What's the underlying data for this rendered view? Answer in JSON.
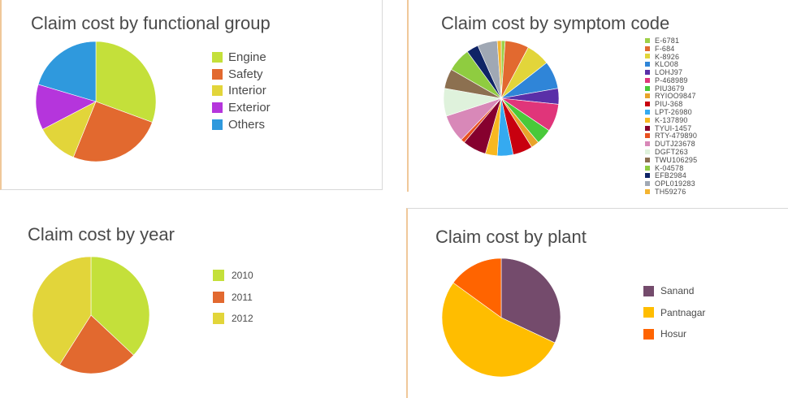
{
  "chart_data": [
    {
      "type": "pie",
      "title": "Claim cost by functional group",
      "categories": [
        "Engine",
        "Safety",
        "Interior",
        "Exterior",
        "Others"
      ],
      "values": [
        30,
        25,
        11,
        12,
        20
      ],
      "colors": [
        "#c4e03a",
        "#e2692f",
        "#e2d53a",
        "#b535dc",
        "#2f99dd"
      ],
      "legend": "right"
    },
    {
      "type": "pie",
      "title": "Claim cost by symptom code",
      "categories": [
        "E-6781",
        "F-684",
        "K-8926",
        "KLO08",
        "LOHJ97",
        "P-468989",
        "PIU3679",
        "RYIOO9847",
        "PIU-368",
        "LPT-26980",
        "K-137890",
        "TYUI-1457",
        "RTY-479890",
        "DUTJ23678",
        "DGFT263",
        "TWU106295",
        "K-04578",
        "EFB2984",
        "OPL019283",
        "TH59276"
      ],
      "values": [
        1,
        6,
        6,
        7,
        4,
        7,
        4,
        2,
        5,
        4,
        3,
        6,
        1,
        7,
        7,
        5,
        6,
        3,
        5,
        1
      ],
      "colors": [
        "#9ed048",
        "#e2692f",
        "#e2d53a",
        "#2f85d8",
        "#5a2fa8",
        "#e0357a",
        "#49c93a",
        "#e8a32a",
        "#c8000f",
        "#35aaf0",
        "#f8b820",
        "#86002e",
        "#e8501f",
        "#d888b8",
        "#dff2dc",
        "#8c7050",
        "#8fcc40",
        "#0f2466",
        "#a0a8b4",
        "#f4b430"
      ],
      "legend": "right"
    },
    {
      "type": "pie",
      "title": "Claim cost by year",
      "categories": [
        "2010",
        "2011",
        "2012"
      ],
      "values": [
        37,
        22,
        41
      ],
      "colors": [
        "#c4e03a",
        "#e2692f",
        "#e2d53a"
      ],
      "legend": "right"
    },
    {
      "type": "pie",
      "title": "Claim cost by plant",
      "categories": [
        "Sanand",
        "Pantnagar",
        "Hosur"
      ],
      "values": [
        32,
        53,
        15
      ],
      "colors": [
        "#744b6c",
        "#ffbd00",
        "#ff6400"
      ],
      "legend": "right"
    }
  ]
}
